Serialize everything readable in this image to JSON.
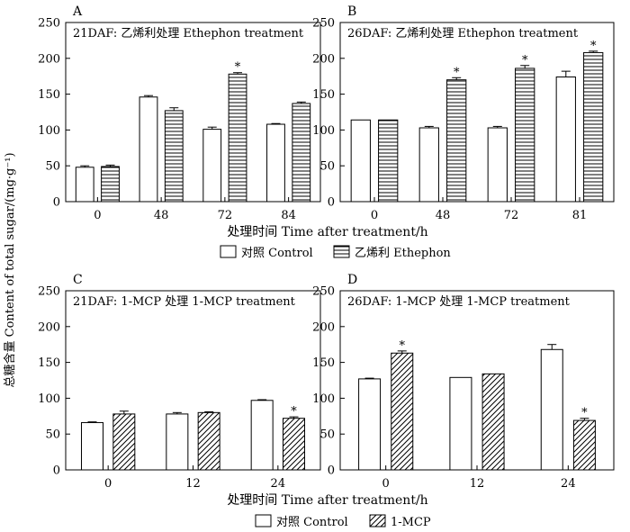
{
  "figure": {
    "y_axis_title": "总糖含量  Content of total sugar/(mg·g⁻¹)",
    "x_axis_title": "处理时间 Time after treatment/h",
    "legend_top": {
      "control": "对照  Control",
      "treatment": "乙烯利  Ethephon"
    },
    "legend_bottom": {
      "control": "对照  Control",
      "treatment": "1-MCP"
    },
    "significance_mark": "*"
  },
  "chart_data": [
    {
      "panel": "A",
      "type": "bar",
      "title": "21DAF: 乙烯利处理 Ethephon treatment",
      "categories": [
        "0",
        "48",
        "72",
        "84"
      ],
      "ylim": [
        0,
        250
      ],
      "yticks": [
        0,
        50,
        100,
        150,
        200,
        250
      ],
      "treatment_pattern": "hlines",
      "series": [
        {
          "name": "对照 Control",
          "values": [
            48,
            146,
            101,
            108
          ],
          "errors": [
            2,
            2,
            3,
            1
          ],
          "significant": [
            false,
            false,
            false,
            false
          ]
        },
        {
          "name": "乙烯利 Ethephon",
          "values": [
            49,
            127,
            178,
            137
          ],
          "errors": [
            2,
            4,
            2,
            2
          ],
          "significant": [
            false,
            false,
            true,
            false
          ]
        }
      ]
    },
    {
      "panel": "B",
      "type": "bar",
      "title": "26DAF: 乙烯利处理 Ethephon treatment",
      "categories": [
        "0",
        "48",
        "72",
        "81"
      ],
      "ylim": [
        0,
        250
      ],
      "yticks": [
        0,
        50,
        100,
        150,
        200,
        250
      ],
      "treatment_pattern": "hlines",
      "series": [
        {
          "name": "对照 Control",
          "values": [
            114,
            103,
            103,
            174
          ],
          "errors": [
            0,
            2,
            2,
            8
          ],
          "significant": [
            false,
            false,
            false,
            false
          ]
        },
        {
          "name": "乙烯利 Ethephon",
          "values": [
            114,
            170,
            186,
            208
          ],
          "errors": [
            0,
            3,
            4,
            2
          ],
          "significant": [
            false,
            true,
            true,
            true
          ]
        }
      ]
    },
    {
      "panel": "C",
      "type": "bar",
      "title": "21DAF: 1-MCP 处理  1-MCP treatment",
      "categories": [
        "0",
        "12",
        "24"
      ],
      "ylim": [
        0,
        250
      ],
      "yticks": [
        0,
        50,
        100,
        150,
        200,
        250
      ],
      "treatment_pattern": "diag",
      "series": [
        {
          "name": "对照 Control",
          "values": [
            66,
            78,
            97
          ],
          "errors": [
            1,
            2,
            1
          ],
          "significant": [
            false,
            false,
            false
          ]
        },
        {
          "name": "1-MCP",
          "values": [
            78,
            80,
            72
          ],
          "errors": [
            4,
            1,
            2
          ],
          "significant": [
            false,
            false,
            true
          ]
        }
      ]
    },
    {
      "panel": "D",
      "type": "bar",
      "title": "26DAF: 1-MCP 处理   1-MCP treatment",
      "categories": [
        "0",
        "12",
        "24"
      ],
      "ylim": [
        0,
        250
      ],
      "yticks": [
        0,
        50,
        100,
        150,
        200,
        250
      ],
      "treatment_pattern": "diag",
      "series": [
        {
          "name": "对照 Control",
          "values": [
            127,
            129,
            168
          ],
          "errors": [
            1,
            0,
            7
          ],
          "significant": [
            false,
            false,
            false
          ]
        },
        {
          "name": "1-MCP",
          "values": [
            163,
            134,
            69
          ],
          "errors": [
            3,
            0,
            3
          ],
          "significant": [
            true,
            false,
            true
          ]
        }
      ]
    }
  ]
}
